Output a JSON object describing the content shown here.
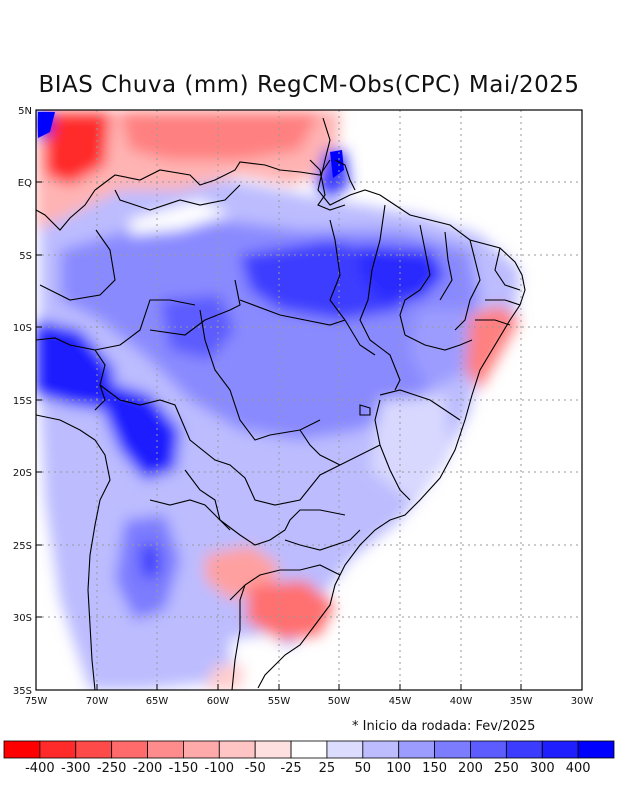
{
  "title": "BIAS Chuva (mm) RegCM-Obs(CPC) Mai/2025",
  "lat_labels": [
    "5N",
    "EQ",
    "5S",
    "10S",
    "15S",
    "20S",
    "25S",
    "30S",
    "35S"
  ],
  "lon_labels": [
    "75W",
    "70W",
    "65W",
    "60W",
    "55W",
    "50W",
    "45W",
    "40W",
    "35W",
    "30W"
  ],
  "note": "* Inicio da rodada: Fev/2025",
  "colorbar": {
    "colors": [
      "#ff0000",
      "#ff2a2a",
      "#ff4a4a",
      "#ff6a6a",
      "#ff8c8c",
      "#ffaaaa",
      "#ffc4c4",
      "#ffe0e0",
      "#ffffff",
      "#dcdcff",
      "#bcbcff",
      "#9c9cff",
      "#7c7cff",
      "#5c5cff",
      "#3c3cff",
      "#1e1eff",
      "#0000ff"
    ],
    "labels": [
      "-400",
      "-300",
      "-250",
      "-200",
      "-150",
      "-100",
      "-50",
      "-25",
      "25",
      "50",
      "100",
      "150",
      "200",
      "250",
      "300",
      "400"
    ]
  }
}
